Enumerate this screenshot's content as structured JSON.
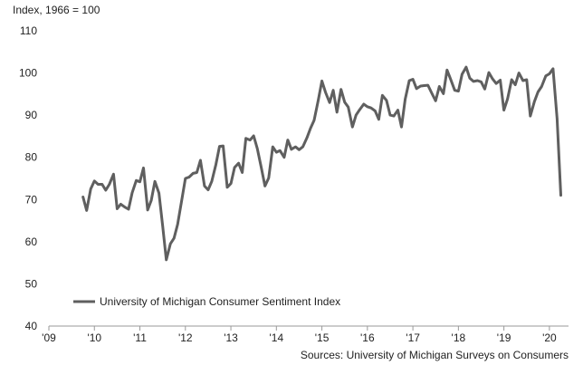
{
  "chart_data": {
    "type": "line",
    "ylabel": "Index, 1966 = 100",
    "ylim": [
      40,
      110
    ],
    "yticks": [
      40,
      50,
      60,
      70,
      80,
      90,
      100,
      110
    ],
    "xlim": [
      2009,
      2020.42
    ],
    "xticks": [
      {
        "value": 2009,
        "label": "'09"
      },
      {
        "value": 2010,
        "label": "'10"
      },
      {
        "value": 2011,
        "label": "'11"
      },
      {
        "value": 2012,
        "label": "'12"
      },
      {
        "value": 2013,
        "label": "'13"
      },
      {
        "value": 2014,
        "label": "'14"
      },
      {
        "value": 2015,
        "label": "'15"
      },
      {
        "value": 2016,
        "label": "'16"
      },
      {
        "value": 2017,
        "label": "'17"
      },
      {
        "value": 2018,
        "label": "'18"
      },
      {
        "value": 2019,
        "label": "'19"
      },
      {
        "value": 2020,
        "label": "'20"
      }
    ],
    "grid": false,
    "legend_position": "bottom-left",
    "source": "Sources: University of Michigan Surveys on Consumers",
    "series": [
      {
        "name": "University of Michigan Consumer Sentiment Index",
        "color": "#5f5f5f",
        "x": [
          2009.75,
          2009.83,
          2009.92,
          2010.0,
          2010.08,
          2010.17,
          2010.25,
          2010.33,
          2010.42,
          2010.5,
          2010.58,
          2010.67,
          2010.75,
          2010.83,
          2010.92,
          2011.0,
          2011.08,
          2011.17,
          2011.25,
          2011.33,
          2011.42,
          2011.5,
          2011.58,
          2011.67,
          2011.75,
          2011.83,
          2011.92,
          2012.0,
          2012.08,
          2012.17,
          2012.25,
          2012.33,
          2012.42,
          2012.5,
          2012.58,
          2012.67,
          2012.75,
          2012.83,
          2012.92,
          2013.0,
          2013.08,
          2013.17,
          2013.25,
          2013.33,
          2013.42,
          2013.5,
          2013.58,
          2013.67,
          2013.75,
          2013.83,
          2013.92,
          2014.0,
          2014.08,
          2014.17,
          2014.25,
          2014.33,
          2014.42,
          2014.5,
          2014.58,
          2014.67,
          2014.75,
          2014.83,
          2014.92,
          2015.0,
          2015.08,
          2015.17,
          2015.25,
          2015.33,
          2015.42,
          2015.5,
          2015.58,
          2015.67,
          2015.75,
          2015.83,
          2015.92,
          2016.0,
          2016.08,
          2016.17,
          2016.25,
          2016.33,
          2016.42,
          2016.5,
          2016.58,
          2016.67,
          2016.75,
          2016.83,
          2016.92,
          2017.0,
          2017.08,
          2017.17,
          2017.25,
          2017.33,
          2017.42,
          2017.5,
          2017.58,
          2017.67,
          2017.75,
          2017.83,
          2017.92,
          2018.0,
          2018.08,
          2018.17,
          2018.25,
          2018.33,
          2018.42,
          2018.5,
          2018.58,
          2018.67,
          2018.75,
          2018.83,
          2018.92,
          2019.0,
          2019.08,
          2019.17,
          2019.25,
          2019.33,
          2019.42,
          2019.5,
          2019.58,
          2019.67,
          2019.75,
          2019.83,
          2019.92,
          2020.0,
          2020.08,
          2020.17,
          2020.25
        ],
        "values": [
          70.6,
          67.4,
          72.5,
          74.4,
          73.6,
          73.6,
          72.2,
          73.6,
          76.0,
          67.8,
          68.9,
          68.2,
          67.7,
          71.6,
          74.5,
          74.2,
          77.5,
          67.5,
          69.8,
          74.3,
          71.5,
          63.7,
          55.7,
          59.5,
          60.8,
          64.1,
          69.9,
          75.0,
          75.3,
          76.2,
          76.4,
          79.3,
          73.2,
          72.3,
          74.3,
          78.3,
          82.6,
          82.7,
          72.9,
          73.8,
          77.6,
          78.6,
          76.4,
          84.5,
          84.1,
          85.1,
          82.1,
          77.5,
          73.2,
          75.1,
          82.5,
          81.2,
          81.6,
          80.0,
          84.1,
          81.9,
          82.5,
          81.8,
          82.5,
          84.6,
          86.9,
          88.8,
          93.6,
          98.1,
          95.4,
          93.0,
          95.9,
          90.7,
          96.1,
          93.1,
          91.9,
          87.2,
          90.0,
          91.3,
          92.6,
          92.0,
          91.7,
          91.0,
          89.0,
          94.7,
          93.5,
          90.0,
          89.8,
          91.2,
          87.2,
          93.8,
          98.2,
          98.5,
          96.3,
          96.9,
          97.0,
          97.1,
          95.1,
          93.4,
          96.8,
          95.1,
          100.7,
          98.5,
          95.9,
          95.7,
          99.7,
          101.4,
          98.8,
          98.0,
          98.2,
          97.9,
          96.2,
          100.1,
          98.6,
          97.5,
          98.3,
          91.2,
          93.8,
          98.4,
          97.2,
          100.0,
          98.2,
          98.4,
          89.8,
          93.2,
          95.5,
          96.8,
          99.3,
          99.8,
          101.0,
          89.1,
          71.0
        ]
      }
    ]
  }
}
